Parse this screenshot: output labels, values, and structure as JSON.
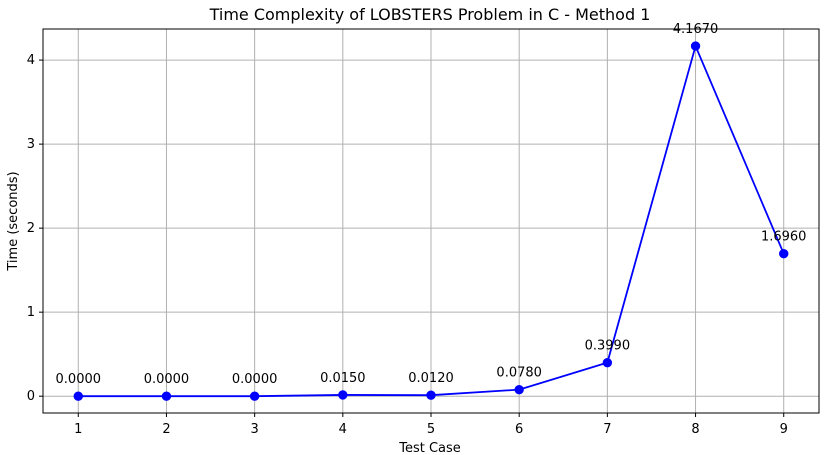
{
  "chart_data": {
    "type": "line",
    "title": "Time Complexity of LOBSTERS Problem in C - Method 1",
    "xlabel": "Test Case",
    "ylabel": "Time (seconds)",
    "x": [
      1,
      2,
      3,
      4,
      5,
      6,
      7,
      8,
      9
    ],
    "series": [
      {
        "values": [
          0.0,
          0.0,
          0.0,
          0.015,
          0.012,
          0.078,
          0.399,
          4.167,
          1.696
        ],
        "labels": [
          "0.0000",
          "0.0000",
          "0.0000",
          "0.0150",
          "0.0120",
          "0.0780",
          "0.3990",
          "4.1670",
          "1.6960"
        ],
        "color": "#0000ff",
        "marker": "circle"
      }
    ],
    "xticks": [
      "1",
      "2",
      "3",
      "4",
      "5",
      "6",
      "7",
      "8",
      "9"
    ],
    "yticks": [
      "0",
      "1",
      "2",
      "3",
      "4"
    ],
    "xlim": [
      0.6,
      9.4
    ],
    "ylim": [
      -0.2,
      4.37
    ],
    "grid": true,
    "colors": {
      "line": "#0000ff",
      "grid": "#b0b0b0",
      "axis": "#000000"
    }
  }
}
